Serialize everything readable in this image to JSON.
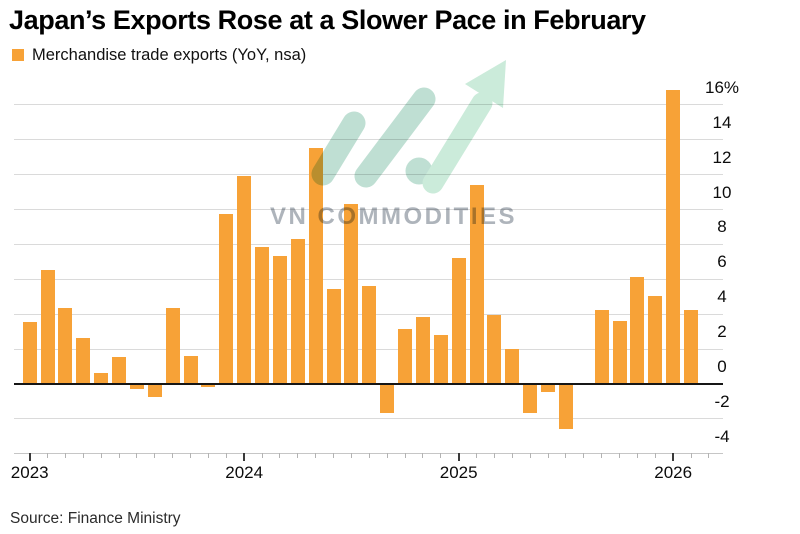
{
  "title": "Japan’s Exports Rose at a Slower Pace in February",
  "legend": {
    "label": "Merchandise trade exports (YoY, nsa)",
    "swatch_color": "#f7a237"
  },
  "watermark": {
    "text": "VN COMMODITIES",
    "logo": "growth-arrow-logo",
    "text_color": "#aeb4bb",
    "slash_color": "#bcded1",
    "arrow_color": "#c9ead8"
  },
  "source_note": "Source: Finance Ministry",
  "colors": {
    "bar": "#f7a237",
    "gridline": "#dadada",
    "zero_line": "#161616",
    "axis_line": "#c6c6c6",
    "text": "#0c0c0c"
  },
  "chart_data": {
    "type": "bar",
    "title": "Japan’s Exports Rose at a Slower Pace in February",
    "series_name": "Merchandise trade exports (YoY, nsa)",
    "unit": "%",
    "categories": [
      "Jan 2023",
      "Feb 2023",
      "Mar 2023",
      "Apr 2023",
      "May 2023",
      "Jun 2023",
      "Jul 2023",
      "Aug 2023",
      "Sep 2023",
      "Oct 2023",
      "Nov 2023",
      "Dec 2023",
      "Jan 2024",
      "Feb 2024",
      "Mar 2024",
      "Apr 2024",
      "May 2024",
      "Jun 2024",
      "Jul 2024",
      "Aug 2024",
      "Sep 2024",
      "Oct 2024",
      "Nov 2024",
      "Dec 2024",
      "Jan 2025",
      "Feb 2025",
      "Mar 2025",
      "Apr 2025",
      "May 2025",
      "Jun 2025",
      "Jul 2025",
      "Aug 2025",
      "Sep 2025",
      "Oct 2025",
      "Nov 2025",
      "Dec 2025",
      "Jan 2026",
      "Feb 2026"
    ],
    "values": [
      3.5,
      6.5,
      4.3,
      2.6,
      0.6,
      1.5,
      -0.3,
      -0.8,
      4.3,
      1.6,
      -0.2,
      9.7,
      11.9,
      7.8,
      7.3,
      8.3,
      13.5,
      5.4,
      10.3,
      5.6,
      -1.7,
      3.1,
      3.8,
      2.8,
      7.2,
      11.4,
      3.9,
      2.0,
      -1.7,
      -0.5,
      -2.6,
      -0.1,
      4.2,
      3.6,
      6.1,
      5.0,
      16.8,
      4.2
    ],
    "yticks": {
      "values": [
        16,
        14,
        12,
        10,
        8,
        6,
        4,
        2,
        0,
        -2,
        -4
      ],
      "labels": [
        "16%",
        "14",
        "12",
        "10",
        "8",
        "6",
        "4",
        "2",
        "0",
        "-2",
        "-4"
      ]
    },
    "xticks": {
      "labels": [
        "2023",
        "2024",
        "2025",
        "2026"
      ],
      "month_index": [
        0,
        12,
        24,
        36
      ]
    },
    "ylim": [
      -4,
      17
    ],
    "grid": true,
    "legend_position": "top-left",
    "y_axis_side": "right"
  }
}
